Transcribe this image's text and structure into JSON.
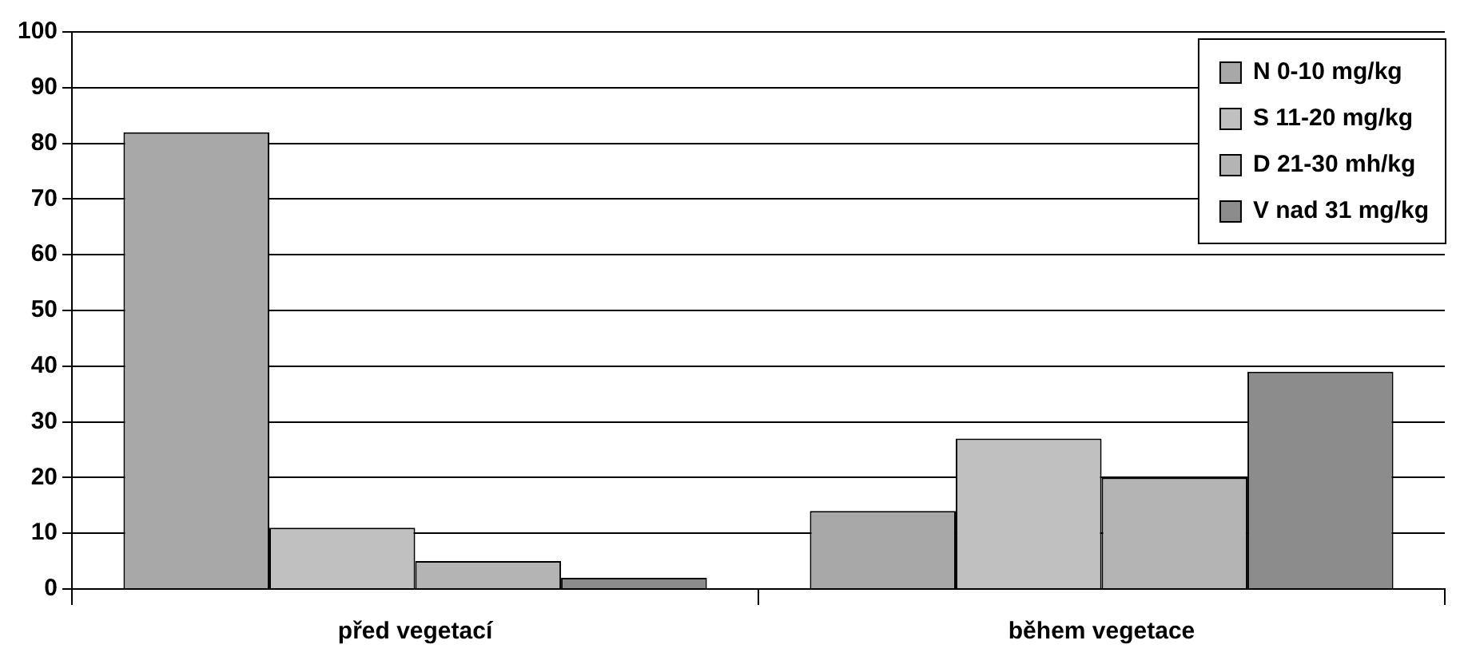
{
  "chart_data": {
    "type": "bar",
    "categories": [
      "před vegetací",
      "během vegetace"
    ],
    "series": [
      {
        "name": "N 0-10 mg/kg",
        "color": "#a8a8a8",
        "values": [
          82,
          14
        ]
      },
      {
        "name": "S 11-20 mg/kg",
        "color": "#c0c0c0",
        "values": [
          11,
          27
        ]
      },
      {
        "name": "D 21-30 mh/kg",
        "color": "#b4b4b4",
        "values": [
          5,
          20
        ]
      },
      {
        "name": "V nad 31 mg/kg",
        "color": "#8c8c8c",
        "values": [
          2,
          39
        ]
      }
    ],
    "ylim": [
      0,
      100
    ],
    "yticks": [
      0,
      10,
      20,
      30,
      40,
      50,
      60,
      70,
      80,
      90,
      100
    ],
    "grid": "y",
    "legend": "top right"
  }
}
